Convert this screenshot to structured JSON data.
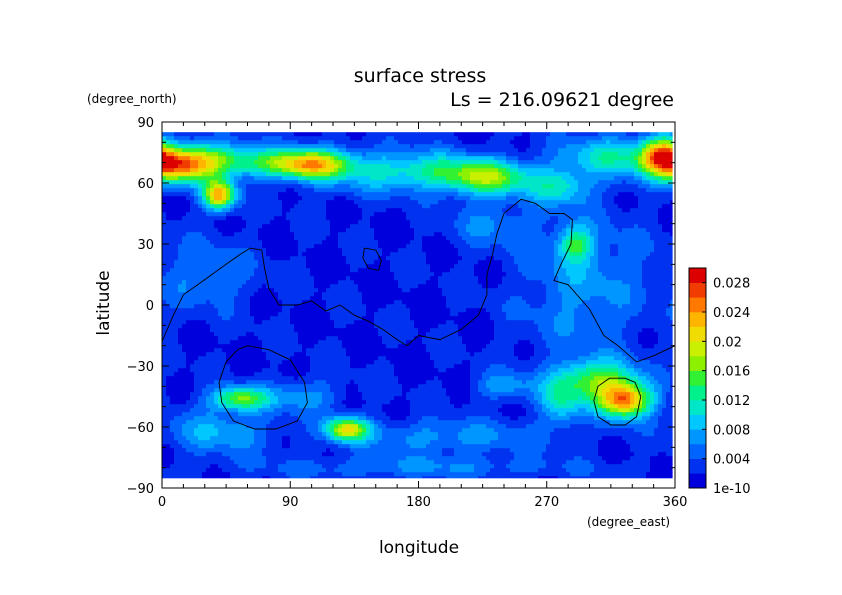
{
  "chart_data": {
    "type": "heatmap",
    "title": "surface stress",
    "subtitle": "Ls = 216.09621 degree",
    "xlabel": "longitude",
    "ylabel": "latitude",
    "x_unit": "(degree_east)",
    "y_unit": "(degree_north)",
    "xlim": [
      0,
      360
    ],
    "ylim": [
      -90,
      90
    ],
    "x_ticks": [
      "0",
      "90",
      "180",
      "270",
      "360"
    ],
    "y_ticks": [
      "90",
      "60",
      "30",
      "0",
      "−30",
      "−60",
      "−90"
    ],
    "x_tick_values": [
      0,
      90,
      180,
      270,
      360
    ],
    "y_tick_values": [
      90,
      60,
      30,
      0,
      -30,
      -60,
      -90
    ],
    "colorbar": {
      "min": 0,
      "max": 0.03,
      "tick_values": [
        0,
        0.004,
        0.008,
        0.012,
        0.016,
        0.02,
        0.024,
        0.028
      ],
      "tick_labels": [
        "1e-10",
        "0.004",
        "0.008",
        "0.012",
        "0.016",
        "0.02",
        "0.024",
        "0.028"
      ],
      "colors": [
        "#0000dc",
        "#0032f0",
        "#0064ff",
        "#0096ff",
        "#00c8ff",
        "#00e6c8",
        "#00f08c",
        "#32f032",
        "#8cf000",
        "#c8f000",
        "#f0dc00",
        "#ffb400",
        "#ff7800",
        "#f03c00",
        "#dc0000"
      ]
    },
    "background_level": 0.0012,
    "hotspots": [
      {
        "lon": 10,
        "lat": 68,
        "sx": 18,
        "sy": 6,
        "amp": 0.018
      },
      {
        "lon": 30,
        "lat": 72,
        "sx": 25,
        "sy": 6,
        "amp": 0.01
      },
      {
        "lon": 40,
        "lat": 54,
        "sx": 8,
        "sy": 5,
        "amp": 0.021
      },
      {
        "lon": 105,
        "lat": 69,
        "sx": 18,
        "sy": 5,
        "amp": 0.016
      },
      {
        "lon": 75,
        "lat": 70,
        "sx": 25,
        "sy": 5,
        "amp": 0.008
      },
      {
        "lon": 150,
        "lat": 66,
        "sx": 35,
        "sy": 8,
        "amp": 0.006
      },
      {
        "lon": 230,
        "lat": 62,
        "sx": 22,
        "sy": 6,
        "amp": 0.012
      },
      {
        "lon": 200,
        "lat": 66,
        "sx": 30,
        "sy": 6,
        "amp": 0.007
      },
      {
        "lon": 280,
        "lat": 58,
        "sx": 15,
        "sy": 6,
        "amp": 0.008
      },
      {
        "lon": 350,
        "lat": 74,
        "sx": 10,
        "sy": 6,
        "amp": 0.017
      },
      {
        "lon": 315,
        "lat": 73,
        "sx": 25,
        "sy": 7,
        "amp": 0.009
      },
      {
        "lon": 290,
        "lat": 30,
        "sx": 8,
        "sy": 6,
        "amp": 0.01
      },
      {
        "lon": 30,
        "lat": 15,
        "sx": 25,
        "sy": 12,
        "amp": 0.004
      },
      {
        "lon": 295,
        "lat": 10,
        "sx": 30,
        "sy": 25,
        "amp": 0.005
      },
      {
        "lon": 55,
        "lat": -46,
        "sx": 14,
        "sy": 4,
        "amp": 0.014
      },
      {
        "lon": 40,
        "lat": -62,
        "sx": 25,
        "sy": 8,
        "amp": 0.006
      },
      {
        "lon": 130,
        "lat": -61,
        "sx": 10,
        "sy": 4,
        "amp": 0.018
      },
      {
        "lon": 100,
        "lat": -45,
        "sx": 18,
        "sy": 6,
        "amp": 0.005
      },
      {
        "lon": 305,
        "lat": -37,
        "sx": 20,
        "sy": 7,
        "amp": 0.013
      },
      {
        "lon": 325,
        "lat": -47,
        "sx": 13,
        "sy": 6,
        "amp": 0.022
      },
      {
        "lon": 280,
        "lat": -48,
        "sx": 10,
        "sy": 8,
        "amp": 0.008
      },
      {
        "lon": 200,
        "lat": -65,
        "sx": 50,
        "sy": 6,
        "amp": 0.005
      },
      {
        "lon": 180,
        "lat": -80,
        "sx": 80,
        "sy": 4,
        "amp": 0.004
      },
      {
        "lon": 240,
        "lat": -40,
        "sx": 15,
        "sy": 5,
        "amp": 0.005
      },
      {
        "lon": 230,
        "lat": 40,
        "sx": 20,
        "sy": 8,
        "amp": 0.004
      }
    ],
    "contours": [
      [
        [
          0,
          -18
        ],
        [
          8,
          -5
        ],
        [
          15,
          5
        ],
        [
          25,
          10
        ],
        [
          35,
          15
        ],
        [
          45,
          20
        ],
        [
          55,
          25
        ],
        [
          62,
          28
        ],
        [
          70,
          27
        ],
        [
          72,
          18
        ],
        [
          75,
          8
        ],
        [
          82,
          0
        ],
        [
          95,
          0
        ],
        [
          105,
          2
        ],
        [
          115,
          -3
        ],
        [
          125,
          0
        ],
        [
          135,
          -5
        ],
        [
          145,
          -8
        ],
        [
          155,
          -12
        ],
        [
          165,
          -17
        ],
        [
          172,
          -20
        ],
        [
          180,
          -15
        ],
        [
          195,
          -17
        ],
        [
          210,
          -12
        ],
        [
          222,
          -5
        ],
        [
          228,
          5
        ],
        [
          228,
          15
        ],
        [
          232,
          25
        ],
        [
          235,
          35
        ],
        [
          240,
          45
        ],
        [
          252,
          52
        ],
        [
          262,
          50
        ],
        [
          272,
          45
        ],
        [
          282,
          45
        ],
        [
          288,
          42
        ],
        [
          287,
          30
        ],
        [
          280,
          20
        ],
        [
          275,
          12
        ],
        [
          285,
          10
        ],
        [
          300,
          -2
        ],
        [
          310,
          -15
        ],
        [
          320,
          -20
        ],
        [
          333,
          -28
        ],
        [
          345,
          -25
        ],
        [
          360,
          -20
        ]
      ],
      [
        [
          142,
          28
        ],
        [
          150,
          27
        ],
        [
          154,
          22
        ],
        [
          152,
          17
        ],
        [
          145,
          18
        ],
        [
          141,
          23
        ],
        [
          142,
          28
        ]
      ],
      [
        [
          60,
          -20
        ],
        [
          75,
          -22
        ],
        [
          90,
          -27
        ],
        [
          100,
          -38
        ],
        [
          102,
          -48
        ],
        [
          95,
          -57
        ],
        [
          80,
          -61
        ],
        [
          65,
          -61
        ],
        [
          50,
          -57
        ],
        [
          42,
          -48
        ],
        [
          40,
          -38
        ],
        [
          45,
          -28
        ],
        [
          53,
          -22
        ],
        [
          60,
          -20
        ]
      ],
      [
        [
          325,
          -36
        ],
        [
          332,
          -38
        ],
        [
          336,
          -45
        ],
        [
          333,
          -55
        ],
        [
          325,
          -59
        ],
        [
          315,
          -59
        ],
        [
          306,
          -55
        ],
        [
          303,
          -47
        ],
        [
          306,
          -40
        ],
        [
          314,
          -36
        ],
        [
          325,
          -36
        ]
      ]
    ]
  }
}
